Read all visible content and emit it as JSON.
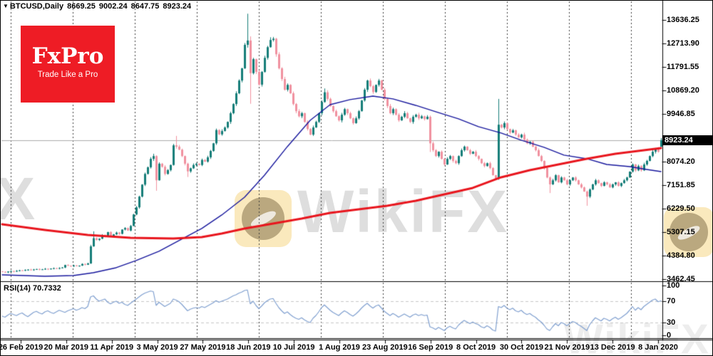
{
  "header": {
    "symbol_marker": "▼",
    "symbol": "BTCUSD,Daily",
    "open": "8669.25",
    "high": "9002.24",
    "low": "8647.75",
    "close": "8923.24"
  },
  "logo": {
    "name": "FxPro",
    "tagline": "Trade Like a Pro",
    "background": "#ee1c25"
  },
  "watermark": {
    "text": "WikiFX",
    "left_fragment": "FX"
  },
  "price_badge": "8923.24",
  "rsi_label": "RSI(14) 70.7332",
  "chart_data": {
    "type": "candlestick",
    "symbol": "BTCUSD",
    "timeframe": "Daily",
    "current_bar": {
      "open": 8669.25,
      "high": 9002.24,
      "low": 8647.75,
      "close": 8923.24
    },
    "colors": {
      "up": "#157d78",
      "down": "#f0919f",
      "ma_fast": "#16169c",
      "ma_slow": "#e8151d",
      "rsi_line": "#7f9fcf",
      "grid": "#3a3a3a",
      "price_line": "#ababab",
      "rsi_levels": "#c6c6c6"
    },
    "price_axis": {
      "tick_values": [
        13636.25,
        12713.9,
        11791.55,
        10869.2,
        9946.85,
        8074.2,
        7151.85,
        6229.5,
        5307.15,
        4384.8,
        3462.45
      ],
      "current_price": 8923.24
    },
    "date_axis": {
      "labels": [
        "26 Feb 2019",
        "20 Mar 2019",
        "11 Apr 2019",
        "3 May 2019",
        "27 May 2019",
        "18 Jun 2019",
        "10 Jul 2019",
        "1 Aug 2019",
        "23 Aug 2019",
        "16 Sep 2019",
        "8 Oct 2019",
        "30 Oct 2019",
        "21 Nov 2019",
        "13 Dec 2019",
        "8 Jan 2020"
      ]
    },
    "candles": {
      "first_open": 3780,
      "closes": [
        3760,
        3740,
        3775,
        3790,
        3770,
        3800,
        3820,
        3810,
        3835,
        3850,
        3830,
        3855,
        3870,
        3845,
        3860,
        3880,
        3865,
        3890,
        3905,
        3885,
        3910,
        3930,
        4030,
        4000,
        3980,
        4010,
        3990,
        4005,
        4070,
        4040,
        4090,
        4760,
        5080,
        5010,
        5060,
        5200,
        5150,
        5320,
        5180,
        5230,
        5300,
        5250,
        5420,
        5480,
        5380,
        5560,
        6010,
        6290,
        6710,
        7180,
        7600,
        7860,
        8190,
        8300,
        7350,
        8000,
        7880,
        7600,
        7750,
        7950,
        8720,
        8670,
        8550,
        8300,
        8000,
        7700,
        7820,
        7950,
        8000,
        7950,
        8150,
        8080,
        8250,
        8500,
        8800,
        9320,
        9150,
        9280,
        9420,
        9640,
        9980,
        10340,
        10760,
        11260,
        11740,
        12660,
        12830,
        11550,
        12100,
        11600,
        11100,
        11600,
        12150,
        12570,
        12850,
        12900,
        12290,
        11740,
        11320,
        10900,
        11090,
        10760,
        10340,
        10060,
        9860,
        9980,
        9640,
        9360,
        9140,
        9420,
        9640,
        9980,
        10420,
        10800,
        10540,
        10260,
        10060,
        9860,
        9700,
        9920,
        10140,
        9980,
        9780,
        9590,
        9780,
        10060,
        10480,
        10900,
        11260,
        11040,
        10810,
        11090,
        11260,
        10900,
        10540,
        10260,
        9980,
        10140,
        9920,
        9700,
        9840,
        9980,
        9780,
        9640,
        9840,
        9920,
        9780,
        9860,
        9750,
        9840,
        8800,
        8530,
        8300,
        8470,
        8190,
        7970,
        8190,
        8300,
        8110,
        8020,
        8300,
        8530,
        8670,
        8530,
        8390,
        8470,
        8300,
        8190,
        8020,
        7910,
        8020,
        7830,
        7550,
        7410,
        9530,
        9420,
        9590,
        9360,
        9220,
        9310,
        9140,
        9030,
        9140,
        8940,
        8800,
        8860,
        8670,
        8530,
        8300,
        8110,
        7830,
        7460,
        7190,
        7350,
        7550,
        7270,
        7460,
        7350,
        7190,
        7350,
        7460,
        7350,
        7190,
        7070,
        6910,
        6710,
        6990,
        7190,
        7350,
        7240,
        7130,
        7270,
        7190,
        7070,
        7190,
        7270,
        7130,
        7240,
        7350,
        7460,
        7690,
        7970,
        7740,
        7910,
        7740,
        7970,
        8110,
        8300,
        8470,
        8580,
        8470,
        8923.24
      ],
      "overrides": {
        "31": [
          4090,
          4820,
          4070,
          4760
        ],
        "32": [
          4760,
          5350,
          4740,
          5080
        ],
        "53": [
          8190,
          8390,
          8110,
          8300
        ],
        "54": [
          8300,
          8330,
          6940,
          7350
        ],
        "61": [
          8720,
          9090,
          8590,
          8670
        ],
        "65": [
          8000,
          8040,
          7480,
          7700
        ],
        "86": [
          12660,
          13880,
          12550,
          12830
        ],
        "87": [
          12830,
          12990,
          10350,
          11550
        ],
        "113": [
          10420,
          10950,
          10390,
          10800
        ],
        "150": [
          9840,
          9890,
          8460,
          8800
        ],
        "174": [
          7410,
          10540,
          7370,
          9530
        ],
        "192": [
          7460,
          7500,
          6850,
          7190
        ],
        "205": [
          6910,
          6950,
          6350,
          6710
        ],
        "231": [
          8669.25,
          9002.24,
          8647.75,
          8923.24
        ]
      }
    },
    "ma_fast_blue": [
      [
        0,
        3645
      ],
      [
        15,
        3589
      ],
      [
        25,
        3617
      ],
      [
        32,
        3729
      ],
      [
        40,
        3924
      ],
      [
        47,
        4203
      ],
      [
        55,
        4566
      ],
      [
        62,
        4985
      ],
      [
        70,
        5460
      ],
      [
        77,
        5990
      ],
      [
        85,
        6688
      ],
      [
        92,
        7553
      ],
      [
        100,
        8670
      ],
      [
        108,
        9702
      ],
      [
        115,
        10316
      ],
      [
        122,
        10512
      ],
      [
        130,
        10651
      ],
      [
        137,
        10540
      ],
      [
        145,
        10288
      ],
      [
        152,
        10037
      ],
      [
        160,
        9758
      ],
      [
        167,
        9451
      ],
      [
        175,
        9200
      ],
      [
        182,
        8921
      ],
      [
        190,
        8642
      ],
      [
        197,
        8335
      ],
      [
        205,
        8195
      ],
      [
        212,
        7971
      ],
      [
        220,
        7888
      ],
      [
        226,
        7776
      ],
      [
        231,
        7692
      ]
    ],
    "ma_slow_red": [
      [
        0,
        5627
      ],
      [
        15,
        5404
      ],
      [
        30,
        5208
      ],
      [
        45,
        5097
      ],
      [
        60,
        5069
      ],
      [
        70,
        5125
      ],
      [
        77,
        5264
      ],
      [
        85,
        5460
      ],
      [
        95,
        5655
      ],
      [
        105,
        5850
      ],
      [
        115,
        6074
      ],
      [
        125,
        6213
      ],
      [
        135,
        6353
      ],
      [
        145,
        6548
      ],
      [
        155,
        6799
      ],
      [
        165,
        7050
      ],
      [
        175,
        7469
      ],
      [
        185,
        7748
      ],
      [
        195,
        7971
      ],
      [
        205,
        8195
      ],
      [
        215,
        8390
      ],
      [
        225,
        8530
      ],
      [
        231,
        8613
      ]
    ],
    "rsi": {
      "period": 14,
      "current": 70.7332,
      "levels": [
        100,
        70,
        30,
        0
      ],
      "values": [
        42,
        40,
        44,
        47,
        45,
        43,
        46,
        48,
        44,
        41,
        45,
        49,
        51,
        48,
        46,
        50,
        52,
        49,
        47,
        50,
        53,
        51,
        49,
        52,
        54,
        56,
        53,
        55,
        58,
        56,
        60,
        78,
        80,
        74,
        70,
        72,
        74,
        68,
        65,
        68,
        70,
        66,
        68,
        64,
        62,
        66,
        70,
        74,
        78,
        82,
        85,
        87,
        89,
        88,
        62,
        68,
        64,
        60,
        63,
        66,
        74,
        72,
        69,
        64,
        58,
        52,
        55,
        57,
        58,
        57,
        60,
        58,
        61,
        64,
        67,
        71,
        68,
        70,
        72,
        74,
        77,
        80,
        82,
        85,
        87,
        90,
        91,
        65,
        70,
        62,
        56,
        61,
        67,
        71,
        74,
        75,
        66,
        58,
        52,
        47,
        50,
        45,
        41,
        38,
        36,
        39,
        35,
        32,
        30,
        38,
        43,
        50,
        58,
        63,
        58,
        53,
        49,
        46,
        43,
        48,
        52,
        49,
        45,
        42,
        46,
        51,
        57,
        62,
        66,
        61,
        57,
        61,
        63,
        57,
        51,
        47,
        43,
        47,
        44,
        40,
        43,
        46,
        43,
        40,
        44,
        46,
        43,
        45,
        43,
        44,
        22,
        20,
        17,
        21,
        18,
        15,
        20,
        23,
        20,
        18,
        25,
        30,
        34,
        31,
        28,
        31,
        28,
        26,
        22,
        20,
        24,
        21,
        16,
        14,
        60,
        58,
        62,
        57,
        54,
        57,
        52,
        50,
        53,
        48,
        45,
        47,
        43,
        40,
        35,
        31,
        25,
        18,
        15,
        22,
        28,
        24,
        30,
        28,
        24,
        28,
        32,
        30,
        26,
        23,
        19,
        15,
        26,
        33,
        39,
        36,
        33,
        38,
        36,
        33,
        37,
        40,
        36,
        39,
        43,
        47,
        53,
        60,
        53,
        58,
        54,
        60,
        64,
        68,
        72,
        74,
        69,
        70.73
      ]
    }
  }
}
